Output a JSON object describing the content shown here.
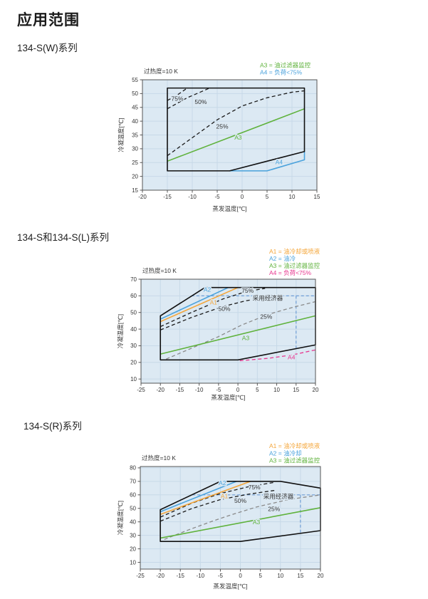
{
  "page": {
    "title": "应用范围"
  },
  "style_colors": {
    "green": "#5fb23c",
    "blue": "#4aa2dc",
    "orange": "#f4a63a",
    "pink": "#e8368f",
    "black_dash": "#1a1a1a",
    "gray_dash": "#8a8a8a",
    "economizer_blue": "#6f9ed6",
    "plot_bg": "#dce9f3",
    "grid": "#c7d9e8",
    "frame": "#555555",
    "text": "#333333"
  },
  "charts": [
    {
      "id": "134sw",
      "section_title": "134-S(W)系列",
      "note": "过热度=10 K",
      "xlabel": "蒸发温度[℃]",
      "ylabel": "冷凝温度[℃]",
      "legend": [
        {
          "label": "A3 = 油过滤器监控",
          "color": "#5fb23c"
        },
        {
          "label": "A4 = 负荷<75%",
          "color": "#4aa2dc"
        }
      ],
      "chart_data": {
        "type": "line",
        "title": "134-S(W) application envelope",
        "xlabel": "蒸发温度[℃]",
        "ylabel": "冷凝温度[℃]",
        "axes": {
          "xmin": -20,
          "xmax": 15,
          "ymin": 15,
          "ymax": 55,
          "xticks": [
            -20,
            -15,
            -10,
            -5,
            0,
            5,
            10,
            15
          ],
          "yticks": [
            15,
            20,
            25,
            30,
            35,
            40,
            45,
            50,
            55
          ]
        },
        "envelope": [
          [
            -15,
            22
          ],
          [
            -2.5,
            22
          ],
          [
            12.5,
            29
          ],
          [
            12.5,
            52
          ],
          [
            -15,
            52
          ]
        ],
        "series": [
          {
            "name": "A4",
            "style": "solid",
            "color": "#4aa2dc",
            "points": [
              [
                -2.5,
                22
              ],
              [
                5,
                22
              ],
              [
                12.5,
                26
              ],
              [
                12.5,
                29
              ]
            ]
          },
          {
            "name": "A3",
            "style": "solid",
            "color": "#5fb23c",
            "points": [
              [
                -15,
                25.5
              ],
              [
                12.5,
                44.5
              ]
            ]
          },
          {
            "name": "75%",
            "style": "dashed",
            "color": "#1a1a1a",
            "points": [
              [
                -15,
                47.5
              ],
              [
                -13,
                49.5
              ],
              [
                -11,
                52
              ]
            ]
          },
          {
            "name": "50%",
            "style": "dashed",
            "color": "#1a1a1a",
            "points": [
              [
                -15,
                44.5
              ],
              [
                -11,
                48.5
              ],
              [
                -6.5,
                52
              ]
            ]
          },
          {
            "name": "25%",
            "style": "dashed",
            "color": "#1a1a1a",
            "points": [
              [
                -15,
                27.5
              ],
              [
                -10,
                34
              ],
              [
                -5,
                40.5
              ],
              [
                0,
                45.5
              ],
              [
                5,
                48.5
              ],
              [
                10,
                50.5
              ],
              [
                12.5,
                51
              ]
            ]
          }
        ],
        "labels": [
          {
            "text": "75%",
            "x": -13,
            "y": 47.4,
            "color": "#333333"
          },
          {
            "text": "50%",
            "x": -8.3,
            "y": 46.2,
            "color": "#333333"
          },
          {
            "text": "25%",
            "x": -4,
            "y": 37.3,
            "color": "#333333"
          },
          {
            "text": "A3",
            "x": -0.8,
            "y": 33.3,
            "color": "#5fb23c"
          },
          {
            "text": "A4",
            "x": 7.4,
            "y": 24.4,
            "color": "#4aa2dc"
          }
        ]
      }
    },
    {
      "id": "134sl",
      "section_title": "134-S和134-S(L)系列",
      "note": "过热度=10 K",
      "xlabel": "蒸发温度[℃]",
      "ylabel": "冷凝温度[℃]",
      "legend": [
        {
          "label": "A1 = 油冷却或喷液",
          "color": "#f4a63a"
        },
        {
          "label": "A2 = 油冷",
          "color": "#4aa2dc"
        },
        {
          "label": "A3 = 油过滤器监控",
          "color": "#5fb23c"
        },
        {
          "label": "A4 = 负荷<75%",
          "color": "#e8368f"
        }
      ],
      "chart_data": {
        "type": "line",
        "title": "134-S / 134-S(L) application envelope",
        "xlabel": "蒸发温度[℃]",
        "ylabel": "冷凝温度[℃]",
        "axes": {
          "xmin": -25,
          "xmax": 20,
          "ymin": 7.5,
          "ymax": 70,
          "xticks": [
            -25,
            -20,
            -15,
            -10,
            -5,
            0,
            5,
            10,
            15,
            20
          ],
          "yticks": [
            10,
            20,
            30,
            40,
            50,
            60,
            70
          ]
        },
        "envelope": [
          [
            -20,
            21.5
          ],
          [
            0,
            21.5
          ],
          [
            20,
            30.5
          ],
          [
            20,
            65
          ],
          [
            -8.5,
            65
          ],
          [
            -20,
            48
          ]
        ],
        "series": [
          {
            "name": "经济器水平线",
            "style": "econ",
            "color": "#6f9ed6",
            "points": [
              [
                -12,
                60
              ],
              [
                20,
                60
              ]
            ]
          },
          {
            "name": "经济器垂直线",
            "style": "econ",
            "color": "#6f9ed6",
            "points": [
              [
                15,
                60
              ],
              [
                15,
                28.6
              ]
            ]
          },
          {
            "name": "A4",
            "style": "dashed",
            "color": "#e8368f",
            "points": [
              [
                0.5,
                21
              ],
              [
                8,
                22.5
              ],
              [
                14,
                24.5
              ],
              [
                20,
                27.5
              ]
            ]
          },
          {
            "name": "25%",
            "style": "dashed",
            "color": "#8a8a8a",
            "points": [
              [
                -18.5,
                22
              ],
              [
                -12,
                28.5
              ],
              [
                -5,
                35.5
              ],
              [
                1,
                42.5
              ],
              [
                8,
                49
              ],
              [
                14,
                53
              ],
              [
                20,
                56.5
              ]
            ]
          },
          {
            "name": "75%",
            "style": "dashed",
            "color": "#1a1a1a",
            "points": [
              [
                -20,
                41.5
              ],
              [
                -12,
                50
              ],
              [
                -4,
                58
              ],
              [
                2,
                62.5
              ],
              [
                7,
                64.5
              ]
            ]
          },
          {
            "name": "50%",
            "style": "dashed",
            "color": "#1a1a1a",
            "points": [
              [
                -20,
                39.5
              ],
              [
                -12,
                47
              ],
              [
                -4,
                53.5
              ],
              [
                2,
                57
              ],
              [
                5.5,
                58.5
              ]
            ]
          },
          {
            "name": "A3",
            "style": "solid",
            "color": "#5fb23c",
            "points": [
              [
                -20,
                25
              ],
              [
                20,
                48
              ]
            ]
          },
          {
            "name": "A1",
            "style": "solid",
            "color": "#f4a63a",
            "points": [
              [
                -20,
                44.5
              ],
              [
                0,
                65
              ]
            ]
          },
          {
            "name": "A2",
            "style": "solid",
            "color": "#4aa2dc",
            "points": [
              [
                -20,
                46
              ],
              [
                -2.5,
                65
              ]
            ]
          }
        ],
        "labels": [
          {
            "text": "A2",
            "x": -7.9,
            "y": 62.5,
            "color": "#4aa2dc"
          },
          {
            "text": "A1",
            "x": -6.3,
            "y": 54.8,
            "color": "#f4a63a"
          },
          {
            "text": "75%",
            "x": 2.5,
            "y": 61.9,
            "color": "#333333"
          },
          {
            "text": "50%",
            "x": -3.5,
            "y": 51,
            "color": "#333333"
          },
          {
            "text": "采用经济器",
            "x": 7.7,
            "y": 57.3,
            "color": "#333333"
          },
          {
            "text": "25%",
            "x": 7.3,
            "y": 46.2,
            "color": "#333333"
          },
          {
            "text": "A3",
            "x": 2,
            "y": 33.5,
            "color": "#5fb23c"
          },
          {
            "text": "A4",
            "x": 13.8,
            "y": 21.8,
            "color": "#e8368f"
          }
        ]
      }
    },
    {
      "id": "134sr",
      "section_title": "134-S(R)系列",
      "note": "过热度=10 K",
      "xlabel": "蒸发温度[℃]",
      "ylabel": "冷凝温度[℃]",
      "legend": [
        {
          "label": "A1 = 油冷却或喷液",
          "color": "#f4a63a"
        },
        {
          "label": "A2 = 油冷却",
          "color": "#4aa2dc"
        },
        {
          "label": "A3 = 油过滤器监控",
          "color": "#5fb23c"
        }
      ],
      "chart_data": {
        "type": "line",
        "title": "134-S(R) application envelope",
        "xlabel": "蒸发温度[℃]",
        "ylabel": "冷凝温度[℃]",
        "axes": {
          "xmin": -25,
          "xmax": 20,
          "ymin": 5,
          "ymax": 81,
          "xticks": [
            -25,
            -20,
            -15,
            -10,
            -5,
            0,
            5,
            10,
            15,
            20
          ],
          "yticks": [
            10,
            20,
            30,
            40,
            50,
            60,
            70,
            80
          ]
        },
        "envelope": [
          [
            -20,
            25.5
          ],
          [
            0,
            25.5
          ],
          [
            20,
            33.5
          ],
          [
            20,
            65
          ],
          [
            10,
            70
          ],
          [
            -5,
            70
          ],
          [
            -20,
            49
          ]
        ],
        "series": [
          {
            "name": "经济器水平线",
            "style": "econ",
            "color": "#6f9ed6",
            "points": [
              [
                -12,
                60
              ],
              [
                20,
                60
              ]
            ]
          },
          {
            "name": "经济器垂直线",
            "style": "econ",
            "color": "#6f9ed6",
            "points": [
              [
                15,
                60
              ],
              [
                15,
                31.5
              ]
            ]
          },
          {
            "name": "25%",
            "style": "dashed",
            "color": "#8a8a8a",
            "points": [
              [
                -19,
                27
              ],
              [
                -13,
                34
              ],
              [
                -7,
                40.5
              ],
              [
                -2,
                45.5
              ],
              [
                4,
                51
              ],
              [
                12,
                56.5
              ],
              [
                20,
                60
              ]
            ]
          },
          {
            "name": "75%",
            "style": "dashed",
            "color": "#1a1a1a",
            "points": [
              [
                -20,
                43.5
              ],
              [
                -12,
                54
              ],
              [
                -5,
                61
              ],
              [
                2,
                66
              ],
              [
                8.5,
                69.3
              ]
            ]
          },
          {
            "name": "50%",
            "style": "dashed",
            "color": "#1a1a1a",
            "points": [
              [
                -20,
                40.5
              ],
              [
                -12,
                50
              ],
              [
                -5,
                56.5
              ],
              [
                2,
                60.5
              ],
              [
                9,
                63.5
              ]
            ]
          },
          {
            "name": "A3",
            "style": "solid",
            "color": "#5fb23c",
            "points": [
              [
                -20,
                28
              ],
              [
                20,
                50.5
              ]
            ]
          },
          {
            "name": "A1",
            "style": "solid",
            "color": "#f4a63a",
            "points": [
              [
                -20,
                45.5
              ],
              [
                2.5,
                70
              ]
            ]
          },
          {
            "name": "A2",
            "style": "solid",
            "color": "#4aa2dc",
            "points": [
              [
                -20,
                47.5
              ],
              [
                -1,
                70
              ]
            ]
          }
        ],
        "labels": [
          {
            "text": "A2",
            "x": -4.5,
            "y": 67.3,
            "color": "#4aa2dc"
          },
          {
            "text": "A1",
            "x": -4,
            "y": 57.5,
            "color": "#f4a63a"
          },
          {
            "text": "75%",
            "x": 3.5,
            "y": 64,
            "color": "#333333"
          },
          {
            "text": "50%",
            "x": 0,
            "y": 54,
            "color": "#333333"
          },
          {
            "text": "采用经济器",
            "x": 9.5,
            "y": 57.3,
            "color": "#333333"
          },
          {
            "text": "25%",
            "x": 8.4,
            "y": 48,
            "color": "#333333"
          },
          {
            "text": "A3",
            "x": 4,
            "y": 38.3,
            "color": "#5fb23c"
          }
        ]
      }
    }
  ]
}
